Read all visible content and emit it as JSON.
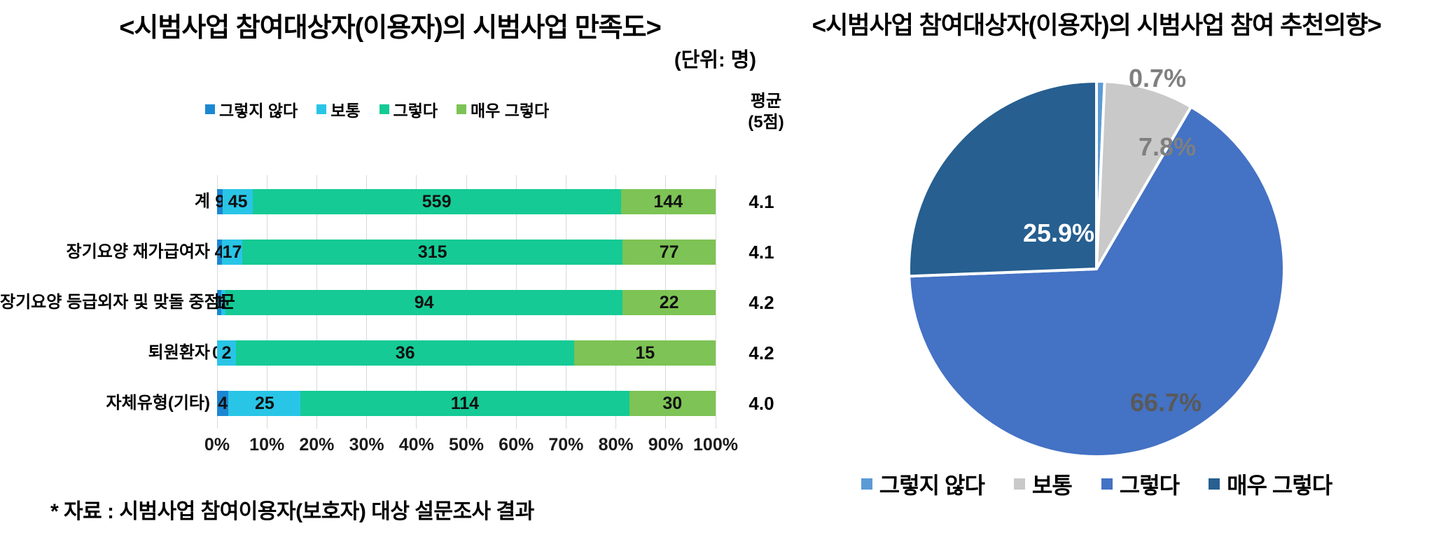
{
  "chart_data": [
    {
      "type": "bar",
      "orientation": "horizontal-stacked",
      "title": "<시범사업 참여대상자(이용자)의 시범사업 만족도>",
      "unit_note": "(단위: 명)",
      "legend_position": "top",
      "grid": true,
      "xlim": [
        0,
        100
      ],
      "x_ticks": [
        "0%",
        "10%",
        "20%",
        "30%",
        "40%",
        "50%",
        "60%",
        "70%",
        "80%",
        "90%",
        "100%"
      ],
      "categories": [
        "계",
        "장기요양 재가급여자",
        "장기요양 등급외자 및 맞돌 중점군",
        "퇴원환자",
        "자체유형(기타)"
      ],
      "series": [
        {
          "name": "그렇지 않다",
          "color": "#1b87d2",
          "values": [
            9,
            4,
            1,
            0,
            4
          ]
        },
        {
          "name": "보통",
          "color": "#29c5e6",
          "values": [
            45,
            17,
            1,
            2,
            25
          ]
        },
        {
          "name": "그렇다",
          "color": "#15ca95",
          "values": [
            559,
            315,
            94,
            36,
            114
          ]
        },
        {
          "name": "매우 그렇다",
          "color": "#7dc355",
          "values": [
            144,
            77,
            22,
            15,
            30
          ]
        }
      ],
      "averages": {
        "header": "평균\n(5점)",
        "values": [
          "4.1",
          "4.1",
          "4.2",
          "4.2",
          "4.0"
        ]
      },
      "footnote": "* 자료 : 시범사업 참여이용자(보호자) 대상 설문조사 결과"
    },
    {
      "type": "pie",
      "title": "<시범사업 참여대상자(이용자)의 시범사업 참여 추천의향>",
      "legend_position": "bottom",
      "labels": [
        "그렇지 않다",
        "보통",
        "그렇다",
        "매우 그렇다"
      ],
      "values": [
        0.7,
        7.8,
        66.7,
        25.9
      ],
      "value_labels": [
        "0.7%",
        "7.8%",
        "66.7%",
        "25.9%"
      ],
      "colors": [
        "#5b9bd5",
        "#c9c9c9",
        "#4472c4",
        "#265f90"
      ],
      "label_text_colors": [
        "#7f7f7f",
        "#7f7f7f",
        "#595959",
        "#ffffff"
      ],
      "start_angle_deg": 0,
      "slice_border_color": "#ffffff"
    }
  ]
}
